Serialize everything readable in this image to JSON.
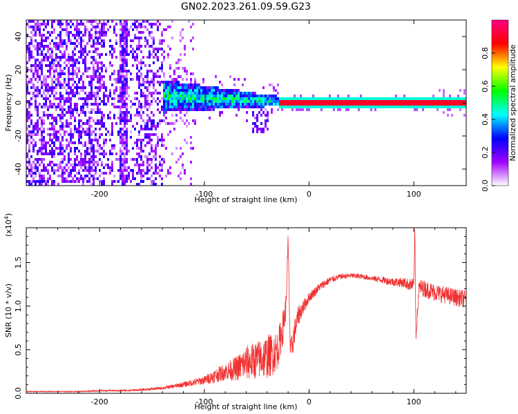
{
  "title": "GN02.2023.261.09.59.G23",
  "chart_data": [
    {
      "type": "heatmap",
      "xlabel": "Height of straight line (km)",
      "ylabel": "Frequency (Hz)",
      "xlim": [
        -270,
        150
      ],
      "ylim": [
        -50,
        50
      ],
      "xticks": [
        -200,
        -100,
        0,
        100
      ],
      "yticks": [
        -40,
        -20,
        0,
        20,
        40
      ],
      "colorbar": {
        "label": "Normalized spectral amplitude",
        "ticks": [
          "0.0",
          "0.2",
          "0.4",
          "0.6",
          "0.8"
        ],
        "range": [
          0,
          1
        ],
        "colors": [
          "#ffffff",
          "#a000ff",
          "#0000ff",
          "#00ffff",
          "#00ff00",
          "#ffff00",
          "#ff0000",
          "#ff0080"
        ]
      },
      "annotations": [
        {
          "feature": "broadband noise",
          "x_range": [
            -270,
            -140
          ],
          "freq_range": [
            -50,
            50
          ]
        },
        {
          "feature": "signal band widening",
          "x_range": [
            -140,
            -30
          ],
          "freq_range": [
            -5,
            12
          ]
        },
        {
          "feature": "narrow carrier line",
          "x_range": [
            -30,
            150
          ],
          "freq": 0
        }
      ]
    },
    {
      "type": "line",
      "xlabel": "Height of straight line (km)",
      "ylabel": "SNR (10 * v/v)",
      "scale_note": "(x10",
      "scale_exp": "4",
      "scale_close": ")",
      "xlim": [
        -270,
        150
      ],
      "ylim": [
        0,
        1.9
      ],
      "xticks": [
        -200,
        -100,
        0,
        100
      ],
      "yticks": [
        "0.0",
        "0.5",
        "1.0",
        "1.5"
      ],
      "color": "#f03030",
      "series": [
        {
          "x": [
            -270,
            -250,
            -220,
            -200,
            -180,
            -160,
            -150,
            -140,
            -120,
            -100,
            -90,
            -80,
            -70,
            -60,
            -50,
            -40,
            -35,
            -30,
            -25,
            -22,
            -20,
            -18,
            -16,
            -14,
            -12,
            -10,
            -5,
            0,
            10,
            20,
            30,
            40,
            50,
            60,
            70,
            80,
            90,
            95,
            100,
            101,
            102,
            105,
            110,
            120,
            130,
            140,
            150
          ],
          "y": [
            0.02,
            0.02,
            0.02,
            0.03,
            0.03,
            0.04,
            0.05,
            0.06,
            0.1,
            0.15,
            0.2,
            0.25,
            0.28,
            0.35,
            0.38,
            0.42,
            0.45,
            0.5,
            0.75,
            1.0,
            1.75,
            0.5,
            0.55,
            0.7,
            0.8,
            0.9,
            1.0,
            1.1,
            1.22,
            1.3,
            1.34,
            1.35,
            1.34,
            1.32,
            1.3,
            1.28,
            1.27,
            1.25,
            1.24,
            1.9,
            0.65,
            1.22,
            1.2,
            1.16,
            1.13,
            1.1,
            1.08
          ],
          "noise": [
            0.005,
            0.005,
            0.006,
            0.008,
            0.01,
            0.012,
            0.015,
            0.015,
            0.03,
            0.05,
            0.08,
            0.1,
            0.14,
            0.2,
            0.22,
            0.25,
            0.25,
            0.22,
            0.2,
            0.15,
            0.1,
            0.1,
            0.15,
            0.15,
            0.12,
            0.12,
            0.08,
            0.06,
            0.05,
            0.04,
            0.03,
            0.03,
            0.03,
            0.03,
            0.04,
            0.05,
            0.06,
            0.07,
            0.08,
            0.08,
            0.08,
            0.09,
            0.1,
            0.1,
            0.1,
            0.1,
            0.1
          ]
        }
      ]
    }
  ]
}
